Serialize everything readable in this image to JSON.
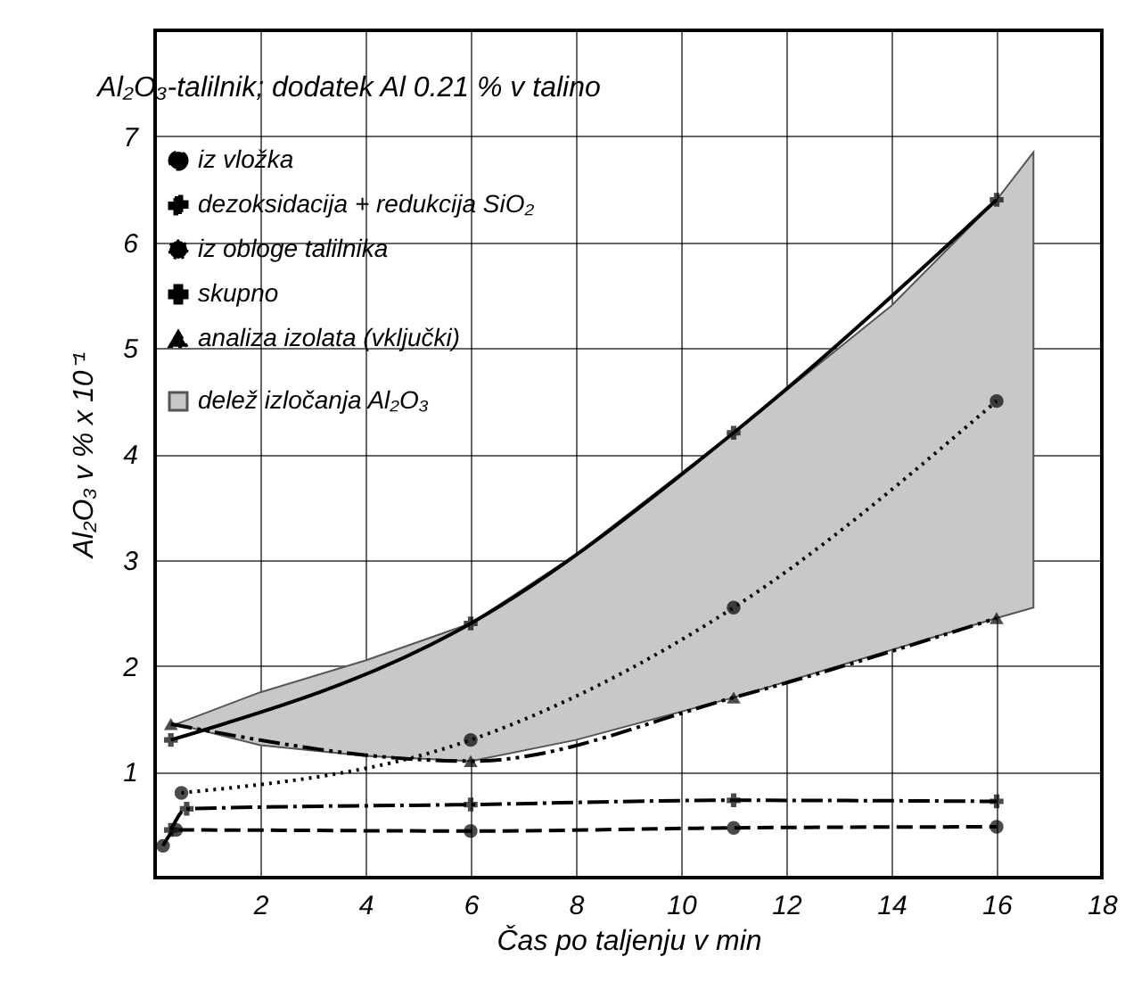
{
  "chart_data": {
    "type": "line",
    "title": "Al₂O₃-talilnik; dodatek Al  0.21 % v talino",
    "xlabel": "Čas po taljenju v min",
    "ylabel": "Al₂O₃ v % x 10⁻¹",
    "xlim": [
      0,
      18
    ],
    "xticks": [
      2,
      4,
      6,
      8,
      10,
      12,
      14,
      16,
      18
    ],
    "ylim": [
      0,
      8
    ],
    "yticks": [
      1,
      2,
      3,
      4,
      5,
      6,
      7
    ],
    "grid": true,
    "legend": "top left",
    "series": [
      {
        "name": "delež izločanja Al₂O₃",
        "type": "area",
        "color": "#c8c8c8",
        "x": [
          0.4,
          2,
          4,
          6,
          8,
          11,
          14,
          16,
          16.7
        ],
        "lower": [
          1.45,
          1.25,
          1.15,
          1.1,
          1.3,
          1.7,
          2.15,
          2.45,
          2.55
        ],
        "upper": [
          1.45,
          1.75,
          2.05,
          2.4,
          3.05,
          4.2,
          5.4,
          6.4,
          6.85
        ],
        "values": [
          null,
          null,
          null,
          null,
          null,
          null,
          null,
          null,
          null
        ]
      },
      {
        "name": "iz vložka",
        "type": "line",
        "color": "#000000",
        "marker": "circle",
        "line_style": "dashed",
        "x": [
          0.15,
          0.4,
          6,
          11,
          16
        ],
        "values": [
          0.3,
          0.45,
          0.44,
          0.47,
          0.48
        ]
      },
      {
        "name": "dezoksidacija + redukcija SiO₂",
        "type": "line",
        "color": "#000000",
        "marker": "cross",
        "line_style": "dashdot",
        "x": [
          0.3,
          0.6,
          6,
          11,
          16
        ],
        "values": [
          0.45,
          0.65,
          0.69,
          0.73,
          0.72
        ]
      },
      {
        "name": "iz obloge talilnika",
        "type": "line",
        "color": "#000000",
        "marker": "circle",
        "line_style": "dotted",
        "x": [
          0.5,
          6,
          11,
          16
        ],
        "values": [
          0.8,
          1.3,
          2.55,
          4.5
        ]
      },
      {
        "name": "skupno",
        "type": "line",
        "color": "#000000",
        "marker": "cross",
        "line_style": "solid",
        "x": [
          0.3,
          6,
          11,
          16
        ],
        "values": [
          1.3,
          2.4,
          4.2,
          6.4
        ]
      },
      {
        "name": "analiza izolata (vključki)",
        "type": "line",
        "color": "#000000",
        "marker": "triangle",
        "line_style": "dashdotdot",
        "x": [
          0.3,
          6,
          11,
          16
        ],
        "values": [
          1.45,
          1.1,
          1.7,
          2.45
        ]
      }
    ]
  }
}
